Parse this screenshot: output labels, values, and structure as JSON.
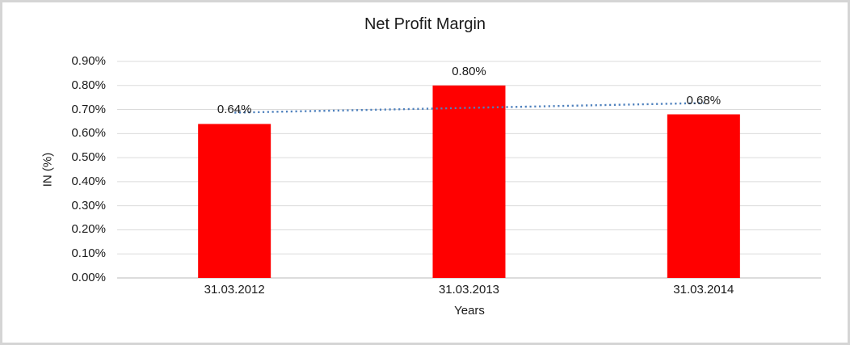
{
  "chart_data": {
    "type": "bar",
    "title": "Net Profit Margin",
    "xlabel": "Years",
    "ylabel": "IN (%)",
    "categories": [
      "31.03.2012",
      "31.03.2013",
      "31.03.2014"
    ],
    "values": [
      0.64,
      0.8,
      0.68
    ],
    "data_labels": [
      "0.64%",
      "0.80%",
      "0.68%"
    ],
    "ylim": [
      0,
      0.9
    ],
    "ytick_step": 0.1,
    "ytick_labels_top_to_bottom": [
      "0.90%",
      "0.80%",
      "0.70%",
      "0.60%",
      "0.50%",
      "0.40%",
      "0.30%",
      "0.20%",
      "0.10%",
      "0.00%"
    ],
    "grid": true,
    "legend": "none",
    "bar_color": "#ff0000",
    "gridline_color": "#dbdbdb",
    "axis_line_color": "#d0d0d0",
    "text_color": "#1a1a1a",
    "trendline": {
      "type": "linear",
      "style": "dotted",
      "color": "#4f81bd",
      "start_value": 0.687,
      "end_value": 0.727
    }
  }
}
